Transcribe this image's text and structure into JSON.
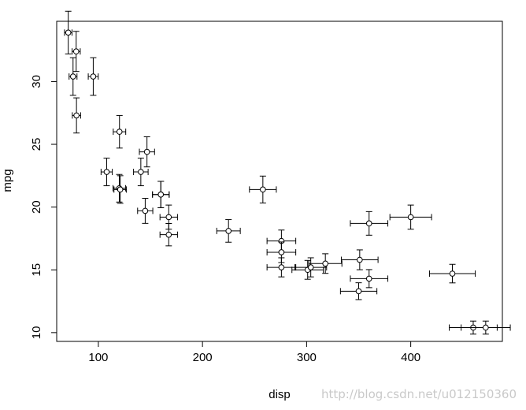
{
  "chart_data": {
    "type": "scatter",
    "title": "",
    "xlabel": "disp",
    "ylabel": "mpg",
    "xlim": [
      60,
      488
    ],
    "ylim": [
      9.3,
      34.8
    ],
    "grid": false,
    "legend": "none",
    "x_ticks": [
      100,
      200,
      300,
      400
    ],
    "x_tick_labels": [
      "100",
      "200",
      "300",
      "400"
    ],
    "y_ticks": [
      10,
      15,
      20,
      25,
      30
    ],
    "y_tick_labels": [
      "10",
      "15",
      "20",
      "25",
      "30"
    ],
    "marker": "open-circle",
    "error_bars": "x and y, symmetric",
    "series": [
      {
        "x": [
          71.1,
          78.7,
          75.7,
          95.1,
          79.0,
          120.3,
          108.0,
          140.8,
          146.7,
          120.1,
          121.0,
          145.0,
          160.0,
          160.0,
          167.6,
          167.6,
          225.0,
          258.0,
          275.8,
          275.8,
          275.8,
          301.0,
          304.0,
          318.0,
          350.0,
          351.0,
          360.0,
          360.0,
          400.0,
          440.0,
          460.0,
          472.0
        ],
        "y": [
          33.9,
          32.4,
          30.4,
          30.4,
          27.3,
          26.0,
          22.8,
          22.8,
          24.4,
          21.5,
          21.4,
          19.7,
          21.0,
          21.0,
          19.2,
          17.8,
          18.1,
          21.4,
          17.3,
          16.4,
          15.2,
          15.0,
          15.2,
          15.5,
          13.3,
          15.8,
          18.7,
          14.3,
          19.2,
          14.7,
          10.4,
          10.4
        ],
        "xerr": [
          3.6,
          3.9,
          3.8,
          4.8,
          4.0,
          6.0,
          5.4,
          7.0,
          7.3,
          6.0,
          6.0,
          7.3,
          8.0,
          8.0,
          8.4,
          8.4,
          11.3,
          12.9,
          13.8,
          13.8,
          13.8,
          15.1,
          15.2,
          15.9,
          17.5,
          17.6,
          18.0,
          18.0,
          20.0,
          22.0,
          23.0,
          23.6
        ],
        "yerr": [
          1.7,
          1.6,
          1.5,
          1.5,
          1.4,
          1.3,
          1.1,
          1.1,
          1.2,
          1.1,
          1.1,
          1.0,
          1.05,
          1.05,
          0.96,
          0.89,
          0.9,
          1.07,
          0.87,
          0.82,
          0.76,
          0.75,
          0.76,
          0.78,
          0.67,
          0.79,
          0.94,
          0.72,
          0.96,
          0.74,
          0.52,
          0.52
        ]
      }
    ]
  },
  "watermark": "http://blog.csdn.net/u012150360"
}
